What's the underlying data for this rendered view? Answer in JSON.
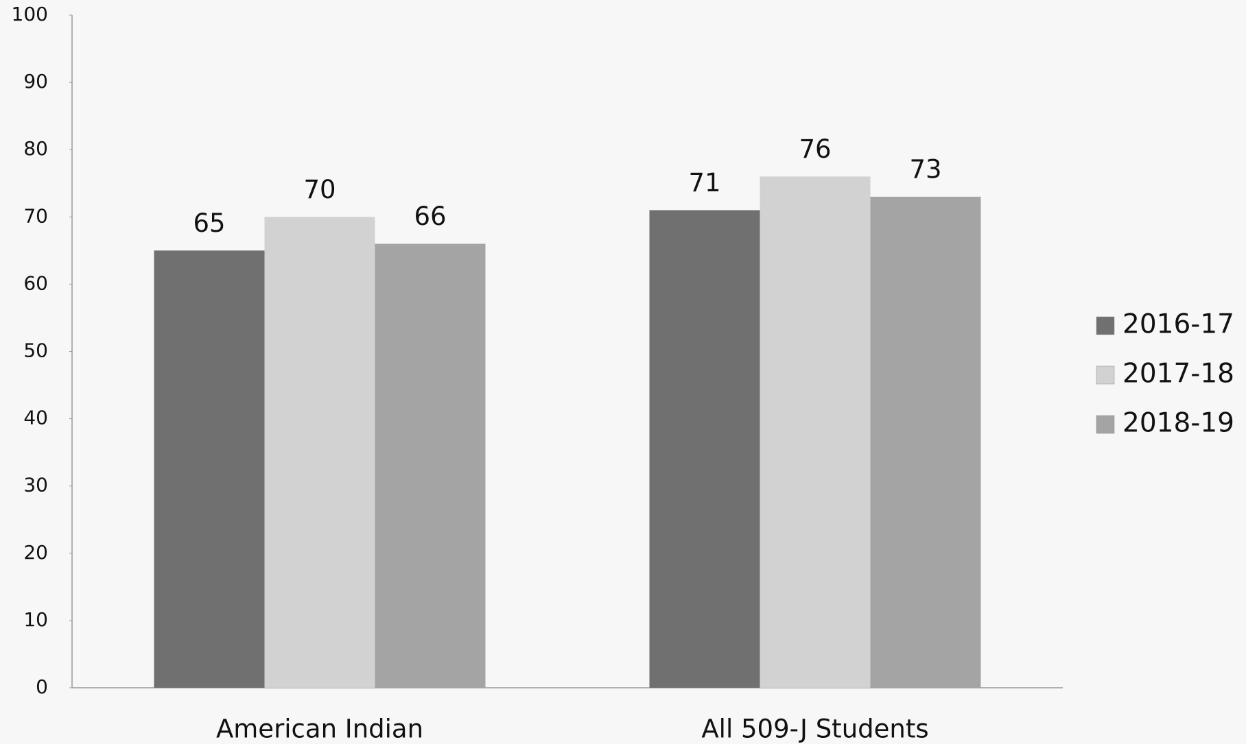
{
  "chart_data": {
    "type": "bar",
    "categories": [
      "American Indian",
      "All 509-J Students"
    ],
    "series": [
      {
        "name": "2016-17",
        "color": "#707070",
        "values": [
          65,
          71
        ]
      },
      {
        "name": "2017-18",
        "color": "#d2d2d2",
        "values": [
          70,
          76
        ]
      },
      {
        "name": "2018-19",
        "color": "#a4a4a4",
        "values": [
          66,
          73
        ]
      }
    ],
    "ylim": [
      0,
      100
    ],
    "yticks": [
      0,
      10,
      20,
      30,
      40,
      50,
      60,
      70,
      80,
      90,
      100
    ],
    "grid": false,
    "legend": "right"
  }
}
